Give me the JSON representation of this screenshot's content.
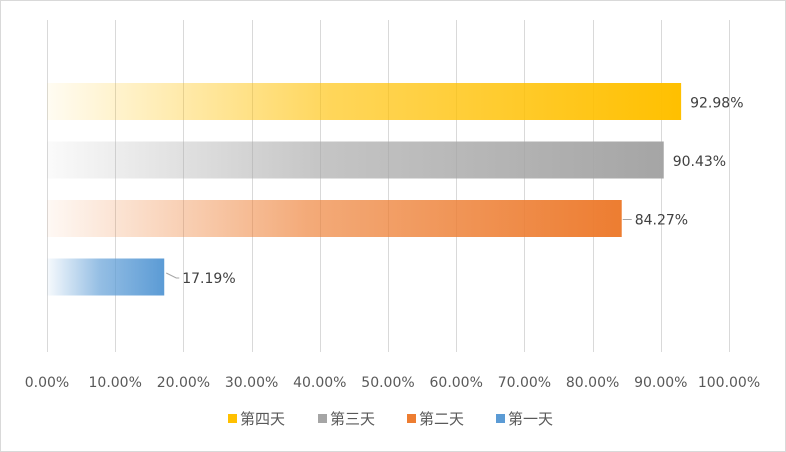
{
  "chart_data": {
    "type": "bar",
    "orientation": "horizontal",
    "categories": [
      "第四天",
      "第三天",
      "第二天",
      "第一天"
    ],
    "values": [
      92.98,
      90.43,
      84.27,
      17.19
    ],
    "value_labels": [
      "92.98%",
      "90.43%",
      "84.27%",
      "17.19%"
    ],
    "colors": [
      "#ffc000",
      "#a5a5a5",
      "#ed7d31",
      "#5b9bd5"
    ],
    "title": "",
    "xlabel": "",
    "ylabel": "",
    "xlim": [
      0,
      100
    ],
    "x_ticks": [
      0,
      10,
      20,
      30,
      40,
      50,
      60,
      70,
      80,
      90,
      100
    ],
    "x_tick_labels": [
      "0.00%",
      "10.00%",
      "20.00%",
      "30.00%",
      "40.00%",
      "50.00%",
      "60.00%",
      "70.00%",
      "80.00%",
      "90.00%",
      "100.00%"
    ],
    "grid": true,
    "gradient_fill": true,
    "legend": {
      "placement": "bottom",
      "entries": [
        {
          "name": "第四天",
          "color": "#ffc000"
        },
        {
          "name": "第三天",
          "color": "#a5a5a5"
        },
        {
          "name": "第二天",
          "color": "#ed7d31"
        },
        {
          "name": "第一天",
          "color": "#5b9bd5"
        }
      ]
    }
  }
}
